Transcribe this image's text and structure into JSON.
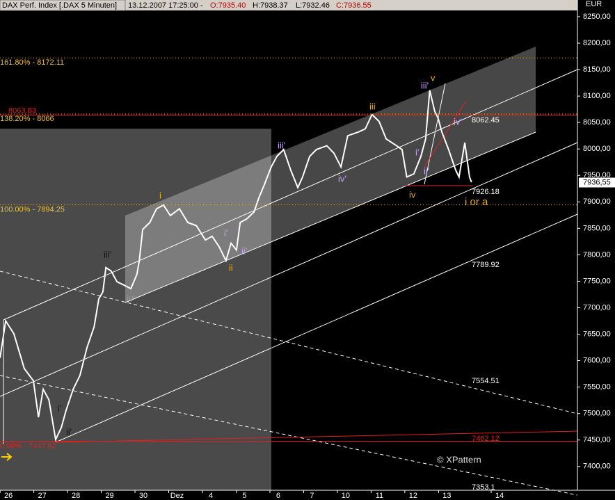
{
  "chart_data": {
    "type": "line",
    "title": "DAX Perf. Index [.DAX  5 Minuten]",
    "header": {
      "datetime": "13.12.2007 17:25:00 - ",
      "open": "O:7935.40",
      "high": "H:7938.37",
      "low": "L:7932.46",
      "close": "C:7936.55"
    },
    "y_unit": "EUR",
    "copyright": "© XPattern",
    "xlim": [
      -0.25,
      16.87
    ],
    "xticks": [
      {
        "value": 0,
        "label": "26"
      },
      {
        "value": 1,
        "label": "27"
      },
      {
        "value": 2,
        "label": "28"
      },
      {
        "value": 3,
        "label": "29"
      },
      {
        "value": 4,
        "label": "30"
      },
      {
        "value": 5,
        "label": "Dez"
      },
      {
        "value": 6,
        "label": "4"
      },
      {
        "value": 7,
        "label": "5"
      },
      {
        "value": 8,
        "label": "6"
      },
      {
        "value": 9,
        "label": "7"
      },
      {
        "value": 10,
        "label": "10"
      },
      {
        "value": 11,
        "label": "11"
      },
      {
        "value": 12,
        "label": "12"
      },
      {
        "value": 13,
        "label": "13"
      },
      {
        "value": 14.56,
        "label": "14"
      }
    ],
    "ylim": [
      7355,
      8271
    ],
    "yticks": [
      {
        "value": 7400,
        "label": "7400,00"
      },
      {
        "value": 7450,
        "label": "7450,00"
      },
      {
        "value": 7500,
        "label": "7500,00"
      },
      {
        "value": 7550,
        "label": "7550,00"
      },
      {
        "value": 7600,
        "label": "7600,00"
      },
      {
        "value": 7650,
        "label": "7650,00"
      },
      {
        "value": 7700,
        "label": "7700,00"
      },
      {
        "value": 7750,
        "label": "7750,00"
      },
      {
        "value": 7800,
        "label": "7800,00"
      },
      {
        "value": 7850,
        "label": "7850,00"
      },
      {
        "value": 7900,
        "label": "7900,00"
      },
      {
        "value": 7950,
        "label": "7950,00"
      },
      {
        "value": 8000,
        "label": "8000,00"
      },
      {
        "value": 8050,
        "label": "8050,00"
      },
      {
        "value": 8100,
        "label": "8100,00"
      },
      {
        "value": 8150,
        "label": "8150,00"
      },
      {
        "value": 8200,
        "label": "8200,00"
      },
      {
        "value": 8250,
        "label": "8250,00"
      }
    ],
    "last_price": {
      "value": 7936.55,
      "label": "7936,55"
    },
    "levels": [
      {
        "label": "161.80% - 8172.11",
        "value": 8172.11,
        "color": "#e8c040"
      },
      {
        "label": "8063.83",
        "value": 8063.83,
        "color": "#e02020"
      },
      {
        "label": "138.20% - 8066",
        "value": 8066,
        "color": "#e8c040"
      },
      {
        "label": "100.00% - 7894.25",
        "value": 7894.25,
        "color": "#e8c040"
      },
      {
        "label": "0.00% - 7447.62",
        "value": 7447.62,
        "color": "#e02020"
      }
    ],
    "line_labels": [
      "8062.45",
      "7926.18",
      "7789.92",
      "7554.51",
      "7462.12",
      "7353.1"
    ],
    "wave_labels": [
      "i",
      "ii",
      "iii",
      "iv",
      "v",
      "i or a",
      "i'",
      "ii'",
      "iii'",
      "iv'",
      "i'",
      "ii'",
      "iii'",
      "iv'",
      "iii'",
      "iv'",
      "i'",
      "ii'"
    ],
    "series": [
      {
        "name": "DAX",
        "color": "#ffffff",
        "x": [
          -0.25,
          -0.08,
          0.16,
          0.47,
          0.74,
          0.89,
          1.03,
          1.2,
          1.4,
          1.57,
          1.71,
          1.92,
          2.12,
          2.33,
          2.54,
          2.68,
          2.8,
          2.89,
          3.05,
          3.22,
          3.42,
          3.63,
          3.81,
          3.88,
          3.98,
          4.19,
          4.39,
          4.6,
          4.8,
          5.07,
          5.32,
          5.57,
          5.84,
          6.04,
          6.25,
          6.45,
          6.6,
          6.76,
          6.87,
          7.07,
          7.28,
          7.42,
          7.59,
          7.79,
          7.96,
          8.16,
          8.37,
          8.58,
          8.72,
          8.93,
          9.13,
          9.44,
          9.65,
          9.86,
          10.06,
          10.37,
          10.58,
          10.78,
          10.99,
          11.2,
          11.51,
          11.67,
          11.81,
          12.02,
          12.23,
          12.37,
          12.49,
          12.64,
          12.74,
          12.85,
          13.05,
          13.26,
          13.36,
          13.53,
          13.67,
          13.73
        ],
        "values": [
          7605,
          7675,
          7651,
          7585,
          7562,
          7493,
          7546,
          7526,
          7451,
          7474,
          7506,
          7546,
          7572,
          7625,
          7664,
          7717,
          7730,
          7776,
          7769,
          7749,
          7743,
          7736,
          7763,
          7789,
          7848,
          7861,
          7887,
          7894,
          7874,
          7887,
          7861,
          7855,
          7828,
          7835,
          7815,
          7789,
          7822,
          7809,
          7861,
          7868,
          7881,
          7907,
          7933,
          7966,
          7986,
          7999,
          7960,
          7927,
          7947,
          7986,
          7999,
          8006,
          7992,
          7966,
          8025,
          8032,
          8038,
          8065,
          8052,
          8019,
          8006,
          7999,
          7947,
          7953,
          7986,
          8019,
          8111,
          8071,
          8058,
          8032,
          7999,
          7960,
          7947,
          8012,
          7947,
          7937
        ]
      }
    ]
  }
}
